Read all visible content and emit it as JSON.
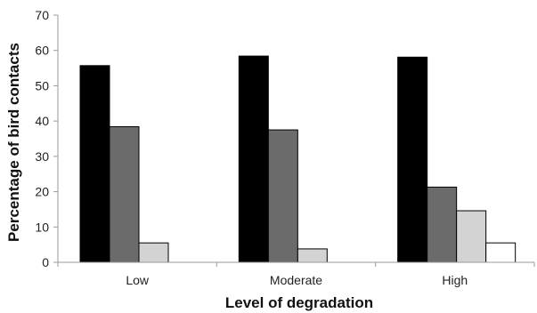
{
  "chart_data": {
    "type": "bar",
    "title": "",
    "xlabel": "Level of degradation",
    "ylabel": "Percentage of bird contacts",
    "categories": [
      "Low",
      "Moderate",
      "High"
    ],
    "series": [
      {
        "values": [
          55.7,
          58.4,
          58.1
        ],
        "color": "#000000"
      },
      {
        "values": [
          38.4,
          37.5,
          21.3
        ],
        "color": "#6b6b6b"
      },
      {
        "values": [
          5.5,
          3.8,
          14.6
        ],
        "color": "#d3d3d3"
      },
      {
        "values": [
          null,
          null,
          5.5
        ],
        "color": "#ffffff"
      }
    ],
    "ylim": [
      0,
      70
    ],
    "yticks": [
      0,
      10,
      20,
      30,
      40,
      50,
      60,
      70
    ],
    "grid": false,
    "legend": "none"
  }
}
